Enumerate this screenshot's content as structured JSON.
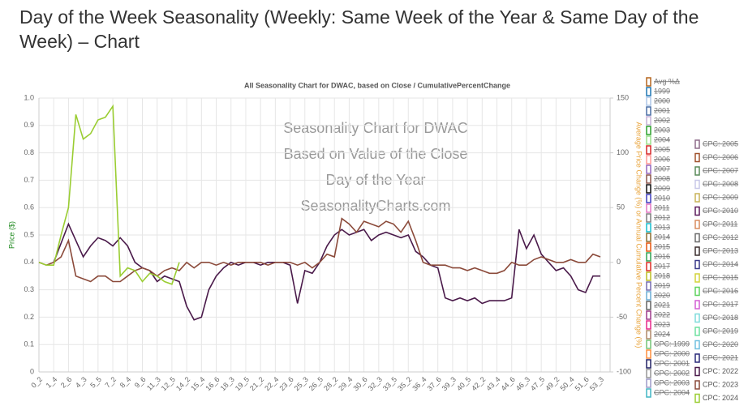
{
  "chart_data": {
    "type": "line",
    "page_title": "Day of the Week Seasonality (Weekly: Same Week of the Year & Same Day of the Week) – Chart",
    "title": "All Seasonality Chart for DWAC, based on Close / CumulativePercentChange",
    "ylabel": "Price ($)",
    "y2label": "Average Price Change (%) or Annual Cumulative Percent Change (%)",
    "annotations": [
      "Seasonality Chart for DWAC",
      "Based on Value of the Close",
      "Day of the Year",
      "SeasonalityCharts.com"
    ],
    "categories": [
      "0_2",
      null,
      "1_4",
      null,
      "2_6",
      null,
      "4_3",
      null,
      "5_5",
      null,
      "7_2",
      null,
      "8_4",
      null,
      "9_6",
      null,
      "11_3",
      null,
      "12_5",
      null,
      "14_2",
      null,
      "15_4",
      null,
      "16_6",
      null,
      "18_3",
      null,
      "19_5",
      null,
      "21_2",
      null,
      "22_4",
      null,
      "23_6",
      null,
      "25_3",
      null,
      "26_5",
      null,
      "28_2",
      null,
      "29_4",
      null,
      "30_6",
      null,
      "32_3",
      null,
      "33_5",
      null,
      "35_2",
      null,
      "36_4",
      null,
      "37_6",
      null,
      "39_3",
      null,
      "40_5",
      null,
      "42_2",
      null,
      "43_4",
      null,
      "44_6",
      null,
      "46_3",
      null,
      "47_5",
      null,
      "49_2",
      null,
      "50_4",
      null,
      "51_6",
      null,
      "53_3"
    ],
    "ylim": [
      0,
      1
    ],
    "yticks": [
      0,
      0.1,
      0.2,
      0.3,
      0.4,
      0.5,
      0.6,
      0.7,
      0.8,
      0.9,
      {
        "value": 1,
        "label": "1.0"
      }
    ],
    "y2lim": [
      -100,
      150
    ],
    "y2ticks": [
      -100,
      -50,
      0,
      50,
      100,
      150
    ],
    "grid": true,
    "legend": "right",
    "series": [
      {
        "name": "Avg %Δ",
        "color": "#b5651d",
        "hidden": true
      },
      {
        "name": "1999",
        "color": "#1f77b4",
        "hidden": true
      },
      {
        "name": "2000",
        "color": "#aec7e8",
        "hidden": true
      },
      {
        "name": "2001",
        "color": "#4a6fa5",
        "hidden": true
      },
      {
        "name": "2002",
        "color": "#c5b0d5",
        "hidden": true
      },
      {
        "name": "2003",
        "color": "#2ca02c",
        "hidden": true
      },
      {
        "name": "2004",
        "color": "#98df8a",
        "hidden": true
      },
      {
        "name": "2005",
        "color": "#d62728",
        "hidden": true
      },
      {
        "name": "2006",
        "color": "#ff9896",
        "hidden": true
      },
      {
        "name": "2007",
        "color": "#9467bd",
        "hidden": true
      },
      {
        "name": "2008",
        "color": "#8c564b",
        "hidden": true
      },
      {
        "name": "2009",
        "color": "#111111",
        "hidden": true
      },
      {
        "name": "2010",
        "color": "#3f3fbf",
        "hidden": true
      },
      {
        "name": "2011",
        "color": "#e377c2",
        "hidden": true
      },
      {
        "name": "2012",
        "color": "#7f7f7f",
        "hidden": true
      },
      {
        "name": "2013",
        "color": "#17becf",
        "hidden": true
      },
      {
        "name": "2014",
        "color": "#8c6d31",
        "hidden": true
      },
      {
        "name": "2015",
        "color": "#e6550d",
        "hidden": true
      },
      {
        "name": "2016",
        "color": "#31a354",
        "hidden": true
      },
      {
        "name": "2017",
        "color": "#de2d26",
        "hidden": true
      },
      {
        "name": "2018",
        "color": "#bcbd22",
        "hidden": true
      },
      {
        "name": "2019",
        "color": "#756bb1",
        "hidden": true
      },
      {
        "name": "2020",
        "color": "#6baed6",
        "hidden": true
      },
      {
        "name": "2021",
        "color": "#636363",
        "hidden": true
      },
      {
        "name": "2022",
        "color": "#9e3a8a",
        "hidden": true
      },
      {
        "name": "2023",
        "color": "#e7298a",
        "hidden": true
      },
      {
        "name": "2024",
        "color": "#b08968",
        "hidden": true
      },
      {
        "name": "CPC: 1999",
        "color": "#74c476",
        "hidden": true
      },
      {
        "name": "CPC: 2000",
        "color": "#fd8d3c",
        "hidden": true
      },
      {
        "name": "CPC: 2001",
        "color": "#222266",
        "hidden": true
      },
      {
        "name": "CPC: 2002",
        "color": "#969696",
        "hidden": true
      },
      {
        "name": "CPC: 2003",
        "color": "#9e9ac8",
        "hidden": true
      },
      {
        "name": "CPC: 2004",
        "color": "#41b6c4",
        "hidden": true
      },
      {
        "name": "CPC: 2005",
        "color": "#8e6c8a",
        "hidden": true
      },
      {
        "name": "CPC: 2006",
        "color": "#a0522d",
        "hidden": true
      },
      {
        "name": "CPC: 2007",
        "color": "#5a8a5a",
        "hidden": true
      },
      {
        "name": "CPC: 2008",
        "color": "#c8c8e8",
        "hidden": true
      },
      {
        "name": "CPC: 2009",
        "color": "#c9b458",
        "hidden": true
      },
      {
        "name": "CPC: 2010",
        "color": "#5b1a5b",
        "hidden": true
      },
      {
        "name": "CPC: 2011",
        "color": "#d98c5f",
        "hidden": true
      },
      {
        "name": "CPC: 2012",
        "color": "#6b6b6b",
        "hidden": true
      },
      {
        "name": "CPC: 2013",
        "color": "#3b2f2f",
        "hidden": true
      },
      {
        "name": "CPC: 2014",
        "color": "#3a3a8a",
        "hidden": true
      },
      {
        "name": "CPC: 2015",
        "color": "#d4d43a",
        "hidden": true
      },
      {
        "name": "CPC: 2016",
        "color": "#5fd35f",
        "hidden": true
      },
      {
        "name": "CPC: 2017",
        "color": "#d45fd4",
        "hidden": true
      },
      {
        "name": "CPC: 2018",
        "color": "#7fdcdc",
        "hidden": true
      },
      {
        "name": "CPC: 2019",
        "color": "#6fe0a0",
        "hidden": true
      },
      {
        "name": "CPC: 2020",
        "color": "#70c0e0",
        "hidden": true
      },
      {
        "name": "CPC: 2021",
        "color": "#2a2a7a",
        "hidden": true
      },
      {
        "name": "CPC: 2022",
        "color": "#4a1a4a",
        "axis": "y2",
        "values": [
          null,
          null,
          0,
          17.5,
          35,
          20,
          5,
          15,
          22.5,
          20,
          15,
          22.5,
          15,
          0,
          -5,
          -7.5,
          -17.5,
          -12.5,
          -15,
          -17.5,
          -40,
          -52.5,
          -50,
          -25,
          -12.5,
          -5,
          0,
          -2.5,
          0,
          0,
          -2.5,
          0,
          0,
          0,
          -2.5,
          -37.5,
          -7.5,
          -10,
          0,
          15,
          25,
          30,
          25,
          27.5,
          30,
          20,
          25,
          27.5,
          25,
          22.5,
          25,
          10,
          5,
          -2.5,
          -5,
          -32.5,
          -35,
          -32.5,
          -35,
          -32.5,
          -37.5,
          -35,
          -35,
          -35,
          -32.5,
          30,
          12.5,
          25,
          7.5,
          0,
          -7.5,
          -5,
          -12.5,
          -25,
          -27.5,
          -12.5,
          -12.5
        ]
      },
      {
        "name": "CPC: 2023",
        "color": "#8b4a3a",
        "axis": "y2",
        "values": [
          0,
          -2.5,
          0,
          5,
          20,
          -12.5,
          -15,
          -17.5,
          -12.5,
          -12.5,
          -17.5,
          -17.5,
          -12.5,
          -7.5,
          -5,
          -7.5,
          -12.5,
          -7.5,
          -5,
          -7.5,
          0,
          -5,
          0,
          0,
          -2.5,
          0,
          -2.5,
          0,
          0,
          0,
          0,
          -2.5,
          0,
          0,
          0,
          -2.5,
          0,
          -5,
          0,
          7.5,
          5,
          40,
          35,
          27.5,
          37.5,
          35,
          32.5,
          37.5,
          35,
          27.5,
          37.5,
          20,
          0,
          -2.5,
          -2.5,
          -2.5,
          -5,
          -5,
          -7.5,
          -5,
          -7.5,
          -10,
          -10,
          -7.5,
          0,
          -2.5,
          -2.5,
          2.5,
          5,
          2.5,
          0,
          0,
          2.5,
          0,
          0,
          7.5,
          5
        ]
      },
      {
        "name": "CPC: 2024",
        "color": "#9acd32",
        "axis": "y2",
        "values": [
          0,
          -2.5,
          -2.5,
          25,
          50,
          135,
          112.5,
          117.5,
          130,
          132.5,
          142.5,
          -12.5,
          -5,
          -7.5,
          -17.5,
          -10,
          -12.5,
          -17.5,
          -20,
          0,
          null,
          null,
          null,
          null,
          null,
          null,
          null,
          null,
          null,
          null,
          null,
          null,
          null,
          null,
          null,
          null,
          null,
          null,
          null,
          null,
          null,
          null,
          null,
          null,
          null,
          null,
          null,
          null,
          null,
          null,
          null,
          null,
          null,
          null,
          null,
          null,
          null,
          null,
          null,
          null,
          null,
          null,
          null,
          null,
          null,
          null,
          null,
          null,
          null,
          null,
          null,
          null,
          null,
          null,
          null,
          null,
          null
        ]
      }
    ]
  }
}
